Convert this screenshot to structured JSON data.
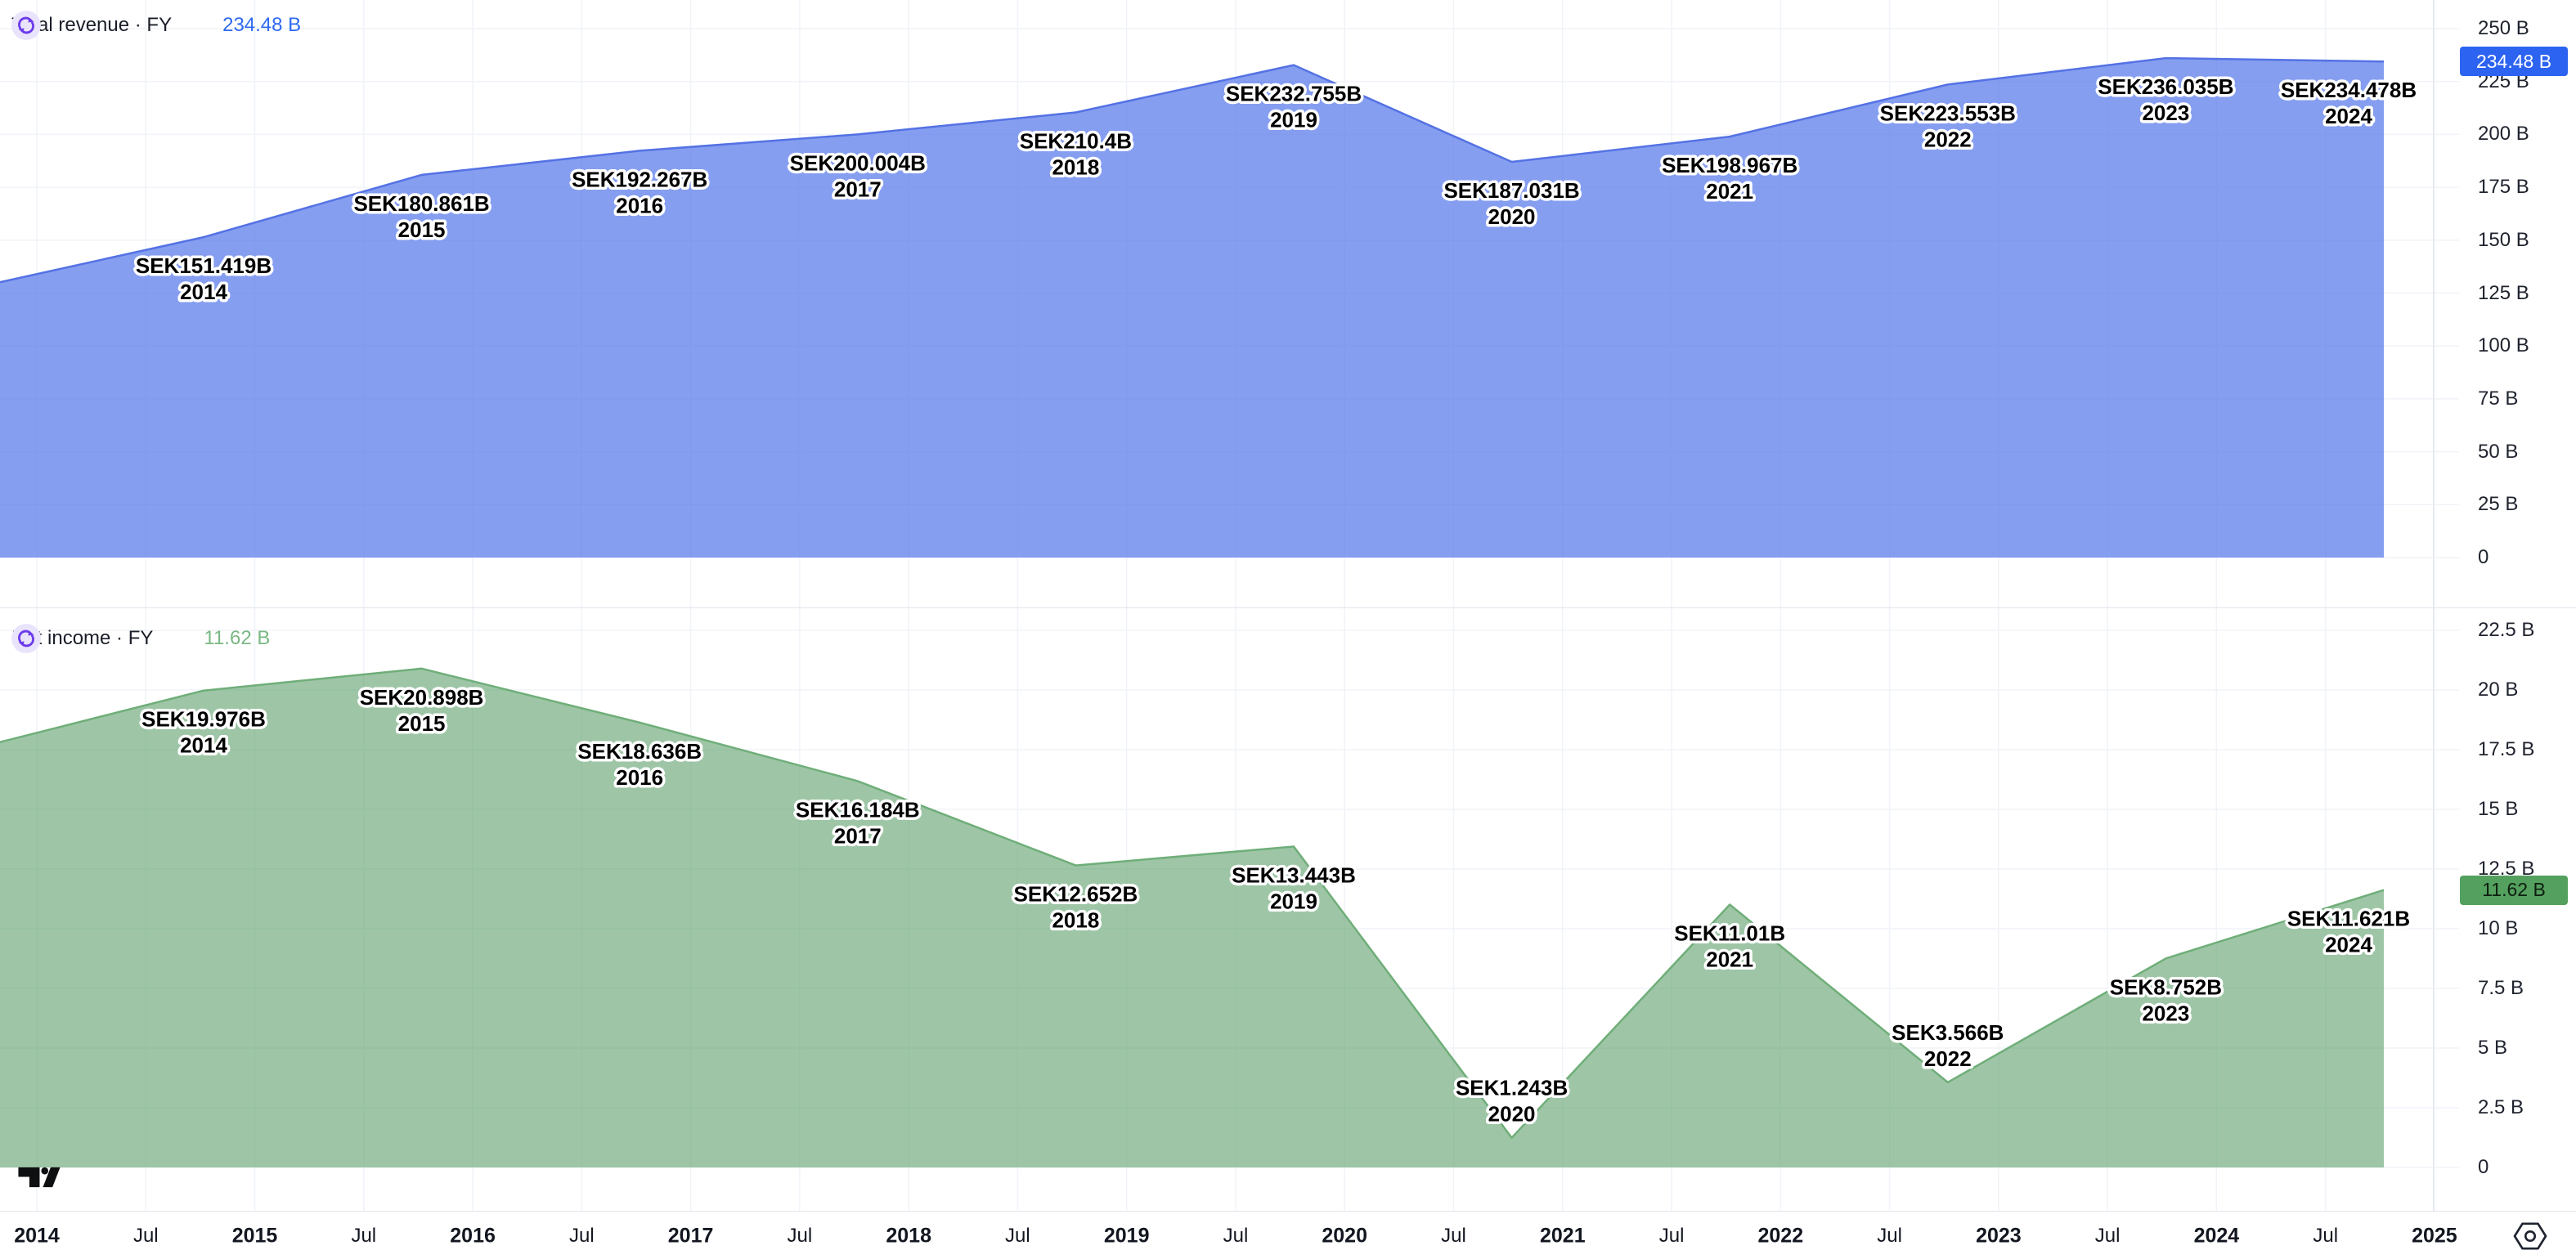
{
  "theme": {
    "background": "#ffffff",
    "grid_color": "#f0f3f8",
    "border_color": "#e1e4ec",
    "text_color": "#1c212b",
    "refresh_icon_bg": "#e9e4fb",
    "refresh_icon_fg": "#6c3beb"
  },
  "panes": [
    {
      "legend": {
        "title": "Total revenue · FY",
        "value": "234.48 B",
        "value_color": "#2f69f2"
      },
      "badge": {
        "text": "234.48 B",
        "value": 234.48,
        "bg": "#2c63f1",
        "fg": "#ffffff"
      },
      "axis_ticks": [
        {
          "v": 250,
          "label": "250 B"
        },
        {
          "v": 225,
          "label": "225 B"
        },
        {
          "v": 200,
          "label": "200 B"
        },
        {
          "v": 175,
          "label": "175 B"
        },
        {
          "v": 150,
          "label": "150 B"
        },
        {
          "v": 125,
          "label": "125 B"
        },
        {
          "v": 100,
          "label": "100 B"
        },
        {
          "v": 75,
          "label": "75 B"
        },
        {
          "v": 50,
          "label": "50 B"
        },
        {
          "v": 25,
          "label": "25 B"
        },
        {
          "v": 0,
          "label": "0"
        }
      ]
    },
    {
      "legend": {
        "title": "Net income · FY",
        "value": "11.62 B",
        "value_color": "#7bb884"
      },
      "badge": {
        "text": "11.62 B",
        "value": 11.62,
        "bg": "#54a05e",
        "fg": "#0d1f10"
      },
      "axis_ticks": [
        {
          "v": 22.5,
          "label": "22.5 B"
        },
        {
          "v": 20,
          "label": "20 B"
        },
        {
          "v": 17.5,
          "label": "17.5 B"
        },
        {
          "v": 15,
          "label": "15 B"
        },
        {
          "v": 12.5,
          "label": "12.5 B"
        },
        {
          "v": 10,
          "label": "10 B"
        },
        {
          "v": 7.5,
          "label": "7.5 B"
        },
        {
          "v": 5,
          "label": "5 B"
        },
        {
          "v": 2.5,
          "label": "2.5 B"
        },
        {
          "v": 0,
          "label": "0"
        }
      ]
    }
  ],
  "chart_data": [
    {
      "type": "area",
      "title": "Total revenue · FY",
      "currency": "SEK",
      "unit": "B",
      "x": [
        2014,
        2015,
        2016,
        2017,
        2018,
        2019,
        2020,
        2021,
        2022,
        2023,
        2024
      ],
      "values": [
        151.419,
        180.861,
        192.267,
        200.004,
        210.4,
        232.755,
        187.031,
        198.967,
        223.553,
        236.035,
        234.478
      ],
      "point_labels": [
        "SEK151.419B",
        "SEK180.861B",
        "SEK192.267B",
        "SEK200.004B",
        "SEK210.4B",
        "SEK232.755B",
        "SEK187.031B",
        "SEK198.967B",
        "SEK223.553B",
        "SEK236.035B",
        "SEK234.478B"
      ],
      "label_side": [
        "below",
        "below",
        "below",
        "below",
        "below",
        "below",
        "below",
        "below",
        "below",
        "below",
        "below"
      ],
      "lead_value": 128,
      "last_value": 234.48,
      "last_value_label": "234.48 B",
      "ylim": [
        0,
        250
      ],
      "y_ticks": [
        0,
        25,
        50,
        75,
        100,
        125,
        150,
        175,
        200,
        225,
        250
      ],
      "grid": true,
      "legend_position": "top-left",
      "line_color": "#5472e4",
      "fill_color": "rgba(88,120,234,0.72)"
    },
    {
      "type": "area",
      "title": "Net income · FY",
      "currency": "SEK",
      "unit": "B",
      "x": [
        2014,
        2015,
        2016,
        2017,
        2018,
        2019,
        2020,
        2021,
        2022,
        2023,
        2024
      ],
      "values": [
        19.976,
        20.898,
        18.636,
        16.184,
        12.652,
        13.443,
        1.243,
        11.01,
        3.566,
        8.752,
        11.621
      ],
      "point_labels": [
        "SEK19.976B",
        "SEK20.898B",
        "SEK18.636B",
        "SEK16.184B",
        "SEK12.652B",
        "SEK13.443B",
        "SEK1.243B",
        "SEK11.01B",
        "SEK3.566B",
        "SEK8.752B",
        "SEK11.621B"
      ],
      "label_side": [
        "below",
        "below",
        "below",
        "below",
        "below",
        "below",
        "above",
        "below",
        "above",
        "below",
        "below"
      ],
      "lead_value": 17.6,
      "last_value": 11.62,
      "last_value_label": "11.62 B",
      "ylim": [
        0,
        22.5
      ],
      "y_ticks": [
        0,
        2.5,
        5,
        7.5,
        10,
        12.5,
        15,
        17.5,
        20,
        22.5
      ],
      "grid": true,
      "legend_position": "top-left",
      "line_color": "#6fae79",
      "fill_color": "rgba(79,152,92,0.55)"
    }
  ],
  "x_axis": {
    "ticks": [
      {
        "label": "2014",
        "bold": true
      },
      {
        "label": "Jul",
        "bold": false
      },
      {
        "label": "2015",
        "bold": true
      },
      {
        "label": "Jul",
        "bold": false
      },
      {
        "label": "2016",
        "bold": true
      },
      {
        "label": "Jul",
        "bold": false
      },
      {
        "label": "2017",
        "bold": true
      },
      {
        "label": "Jul",
        "bold": false
      },
      {
        "label": "2018",
        "bold": true
      },
      {
        "label": "Jul",
        "bold": false
      },
      {
        "label": "2019",
        "bold": true
      },
      {
        "label": "Jul",
        "bold": false
      },
      {
        "label": "2020",
        "bold": true
      },
      {
        "label": "Jul",
        "bold": false
      },
      {
        "label": "2021",
        "bold": true
      },
      {
        "label": "Jul",
        "bold": false
      },
      {
        "label": "2022",
        "bold": true
      },
      {
        "label": "Jul",
        "bold": false
      },
      {
        "label": "2023",
        "bold": true
      },
      {
        "label": "Jul",
        "bold": false
      },
      {
        "label": "2024",
        "bold": true
      },
      {
        "label": "Jul",
        "bold": false
      },
      {
        "label": "2025",
        "bold": true
      }
    ]
  },
  "icons": {
    "refresh": "refresh-cycle-icon",
    "settings": "price-scale-settings-icon",
    "watermark": "tradingview-logo"
  }
}
